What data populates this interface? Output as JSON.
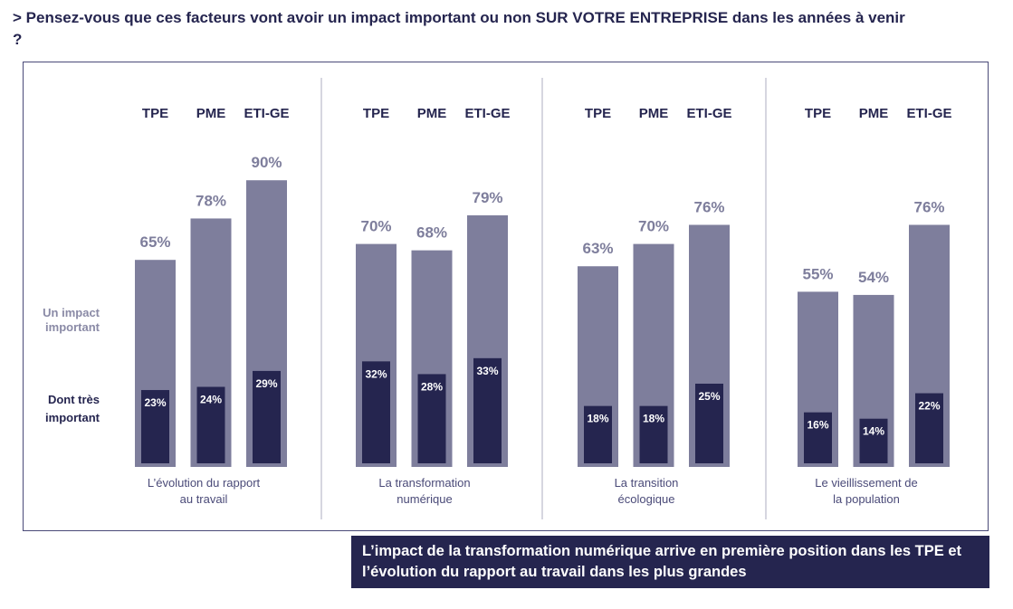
{
  "question": "> Pensez-vous que ces facteurs vont avoir un impact important ou non SUR VOTRE ENTREPRISE dans les années à venir ?",
  "conclusion": "L’impact de la transformation numérique arrive en première position dans les TPE et l’évolution du rapport au travail dans les plus grandes",
  "chart_data": {
    "type": "bar",
    "categories": [
      "TPE",
      "PME",
      "ETI-GE"
    ],
    "legend": {
      "important": "Un impact important",
      "tres": "Dont très important"
    },
    "colors": {
      "important": "#7e7e9c",
      "tres": "#25254f"
    },
    "ylim": [
      0,
      100
    ],
    "groups": [
      {
        "label": [
          "L’évolution du rapport",
          "au travail"
        ],
        "important": [
          65,
          78,
          90
        ],
        "tres": [
          23,
          24,
          29
        ]
      },
      {
        "label": [
          "La transformation",
          "numérique"
        ],
        "important": [
          70,
          68,
          79
        ],
        "tres": [
          32,
          28,
          33
        ]
      },
      {
        "label": [
          "La transition",
          "écologique"
        ],
        "important": [
          63,
          70,
          76
        ],
        "tres": [
          18,
          18,
          25
        ]
      },
      {
        "label": [
          "Le vieillissement de",
          "la population"
        ],
        "important": [
          55,
          54,
          76
        ],
        "tres": [
          16,
          14,
          22
        ]
      }
    ]
  }
}
